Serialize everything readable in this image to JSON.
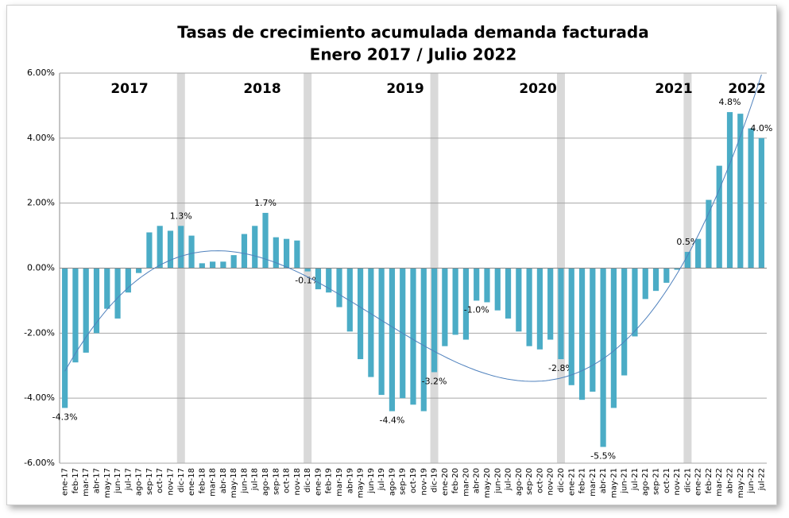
{
  "chart_data": {
    "type": "bar",
    "title": "Tasas de crecimiento acumulada demanda facturada",
    "subtitle": "Enero 2017 / Julio 2022",
    "annotations": [
      "2017",
      "2018",
      "2019",
      "2020",
      "2021",
      "2022"
    ],
    "color": "#4bacc6",
    "categories": [
      "ene-17",
      "feb-17",
      "mar-17",
      "abr-17",
      "may-17",
      "jun-17",
      "jul-17",
      "ago-17",
      "sep-17",
      "oct-17",
      "nov-17",
      "dic-17",
      "ene-18",
      "feb-18",
      "mar-18",
      "abr-18",
      "may-18",
      "jun-18",
      "jul-18",
      "ago-18",
      "sep-18",
      "oct-18",
      "nov-18",
      "dic-18",
      "ene-19",
      "feb-19",
      "mar-19",
      "abr-19",
      "may-19",
      "jun-19",
      "jul-19",
      "ago-19",
      "sep-19",
      "oct-19",
      "nov-19",
      "dic-19",
      "ene-20",
      "feb-20",
      "mar-20",
      "abr-20",
      "may-20",
      "jun-20",
      "jul-20",
      "ago-20",
      "sep-20",
      "oct-20",
      "nov-20",
      "dic-20",
      "ene-21",
      "feb-21",
      "mar-21",
      "abr-21",
      "may-21",
      "jun-21",
      "jul-21",
      "ago-21",
      "sep-21",
      "oct-21",
      "nov-21",
      "dic-21",
      "ene-22",
      "feb-22",
      "mar-22",
      "abr-22",
      "may-22",
      "jun-22",
      "jul-22"
    ],
    "values": [
      -4.3,
      -2.9,
      -2.6,
      -2.0,
      -1.25,
      -1.55,
      -0.75,
      -0.15,
      1.1,
      1.3,
      1.15,
      1.3,
      1.0,
      0.15,
      0.2,
      0.2,
      0.4,
      1.05,
      1.3,
      1.7,
      0.95,
      0.9,
      0.85,
      -0.1,
      -0.65,
      -0.75,
      -1.2,
      -1.95,
      -2.8,
      -3.35,
      -3.9,
      -4.4,
      -4.0,
      -4.2,
      -4.4,
      -3.2,
      -2.4,
      -2.05,
      -2.2,
      -1.0,
      -1.05,
      -1.3,
      -1.55,
      -1.95,
      -2.4,
      -2.5,
      -2.2,
      -2.8,
      -3.6,
      -4.05,
      -3.8,
      -5.5,
      -4.3,
      -3.3,
      -2.1,
      -0.95,
      -0.7,
      -0.45,
      -0.05,
      0.5,
      0.9,
      2.1,
      3.15,
      4.8,
      4.75,
      4.3,
      4.0
    ],
    "value_labels": [
      "-4.3%",
      null,
      null,
      null,
      null,
      null,
      null,
      null,
      null,
      null,
      null,
      "1.3%",
      null,
      null,
      null,
      null,
      null,
      null,
      null,
      "1.7%",
      null,
      null,
      null,
      "-0.1%",
      null,
      null,
      null,
      null,
      null,
      null,
      null,
      "-4.4%",
      null,
      null,
      null,
      "-3.2%",
      null,
      null,
      null,
      "-1.0%",
      null,
      null,
      null,
      null,
      null,
      null,
      null,
      "-2.8%",
      null,
      null,
      null,
      "-5.5%",
      null,
      null,
      null,
      null,
      null,
      null,
      null,
      "0.5%",
      null,
      null,
      null,
      "4.8%",
      null,
      null,
      "4.0%"
    ],
    "ylim": [
      -6,
      6
    ],
    "yticks": [
      {
        "value": -6,
        "label": "-6.00%"
      },
      {
        "value": -4,
        "label": "-4.00%"
      },
      {
        "value": -2,
        "label": "-2.00%"
      },
      {
        "value": 0,
        "label": "0.00%"
      },
      {
        "value": 2,
        "label": "2.00%"
      },
      {
        "value": 4,
        "label": "4.00%"
      },
      {
        "value": 6,
        "label": "6.00%"
      }
    ],
    "grid": true,
    "trendline": true
  }
}
